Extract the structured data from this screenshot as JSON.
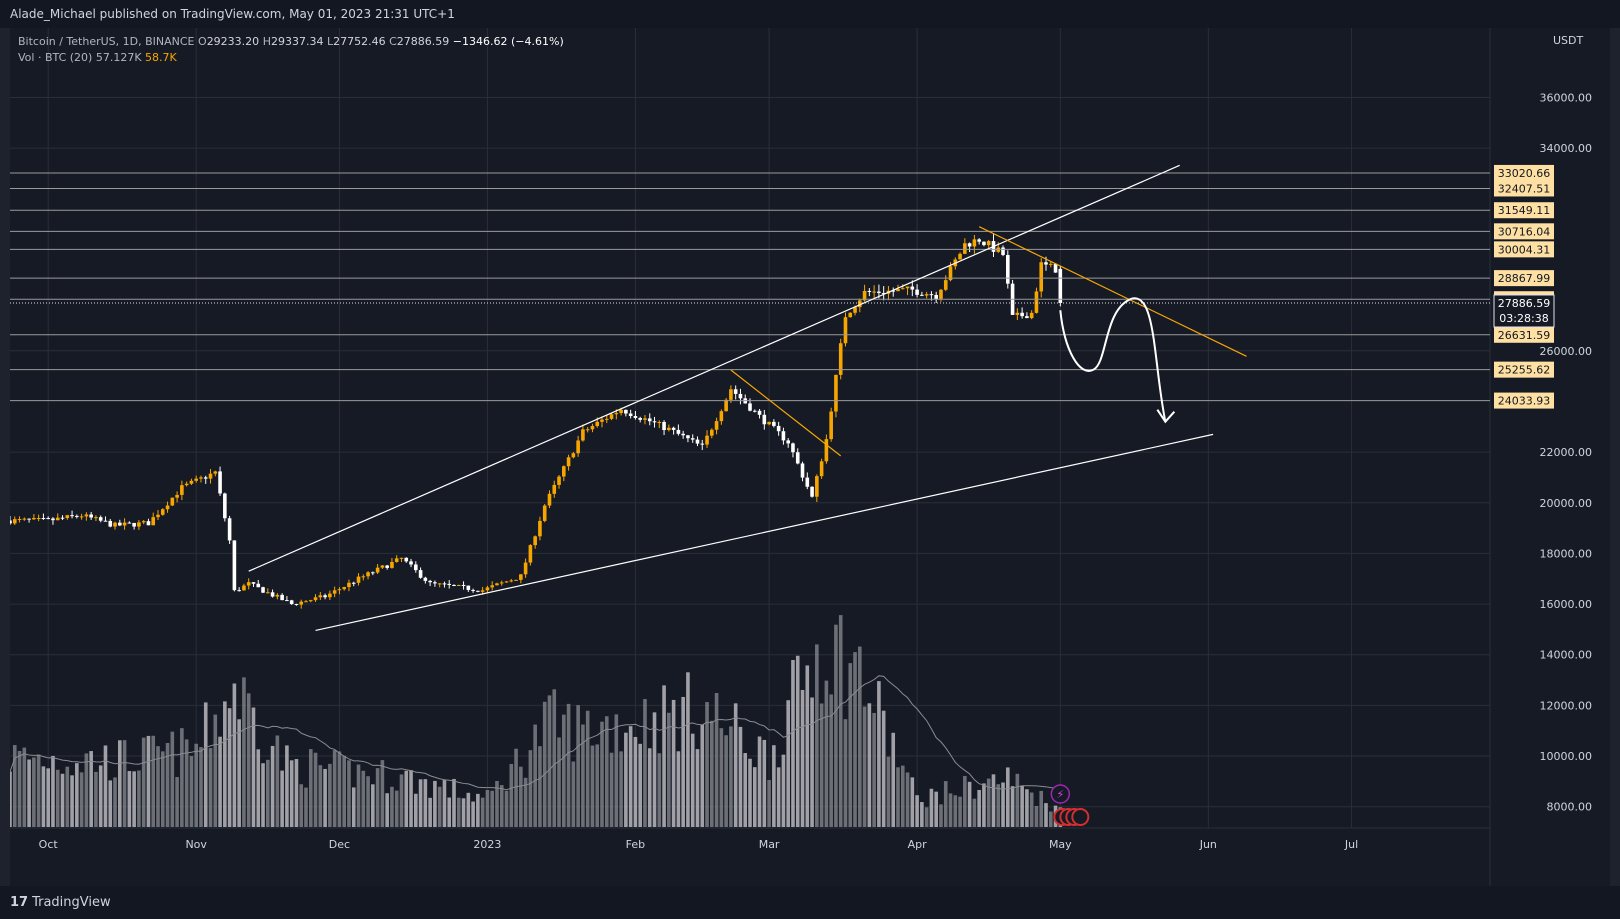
{
  "header": {
    "publisher_line": "Alade_Michael published on TradingView.com, May 01, 2023 21:31 UTC+1"
  },
  "legend": {
    "symbol": "Bitcoin / TetherUS, 1D, BINANCE",
    "o_label": "O",
    "o_value": "29233.20",
    "h_label": "H",
    "h_value": "29337.34",
    "l_label": "L",
    "l_value": "27752.46",
    "c_label": "C",
    "c_value": "27886.59",
    "change": "−1346.62 (−4.61%)",
    "vol_label": "Vol · BTC (20)",
    "vol_ma": "57.127K",
    "vol_value": "58.7K"
  },
  "y_axis_title": "USDT",
  "footer": {
    "brand": "TradingView",
    "brand_icon": "tradingview-logo-icon"
  },
  "colors": {
    "background": "#161a25",
    "up": "#f7a600",
    "down": "#ffffff",
    "grid": "#2a2e39",
    "level_line": "#9a9a9a",
    "trendline": "#ffffff",
    "downtrend": "#f7a600",
    "price_tag": "#ffe0a3"
  },
  "chart_data": {
    "type": "candlestick",
    "symbol": "BTCUSDT",
    "interval": "1D",
    "x": [
      "2022-09-23",
      "2022-10-01",
      "2022-11-01",
      "2022-12-01",
      "2023-01-01",
      "2023-02-01",
      "2023-03-01",
      "2023-04-01",
      "2023-05-01",
      "2023-06-01",
      "2023-07-01",
      "2023-07-30"
    ],
    "x_tick_labels": [
      "Oct",
      "Nov",
      "Dec",
      "2023",
      "Feb",
      "Mar",
      "Apr",
      "May",
      "Jun",
      "Jul"
    ],
    "y_tick_labels": [
      "36000.00",
      "34000.00",
      "26000.00",
      "22000.00",
      "20000.00",
      "18000.00",
      "16000.00",
      "14000.00",
      "12000.00",
      "10000.00",
      "8000.00"
    ],
    "ylim": [
      7160,
      38190
    ],
    "grid": true,
    "price_path": [
      [
        "2022-09-23",
        19300
      ],
      [
        "2022-10-01",
        19300
      ],
      [
        "2022-10-08",
        19500
      ],
      [
        "2022-10-15",
        19100
      ],
      [
        "2022-10-22",
        19200
      ],
      [
        "2022-10-29",
        20600
      ],
      [
        "2022-11-05",
        21200
      ],
      [
        "2022-11-08",
        18500
      ],
      [
        "2022-11-09",
        16500
      ],
      [
        "2022-11-12",
        16800
      ],
      [
        "2022-11-21",
        16000
      ],
      [
        "2022-11-28",
        16300
      ],
      [
        "2022-12-05",
        17000
      ],
      [
        "2022-12-14",
        17800
      ],
      [
        "2022-12-20",
        16800
      ],
      [
        "2022-12-31",
        16550
      ],
      [
        "2023-01-08",
        17100
      ],
      [
        "2023-01-13",
        19900
      ],
      [
        "2023-01-21",
        22800
      ],
      [
        "2023-01-29",
        23700
      ],
      [
        "2023-02-08",
        22900
      ],
      [
        "2023-02-15",
        22200
      ],
      [
        "2023-02-21",
        24500
      ],
      [
        "2023-02-27",
        23400
      ],
      [
        "2023-03-05",
        22400
      ],
      [
        "2023-03-10",
        20200
      ],
      [
        "2023-03-13",
        22500
      ],
      [
        "2023-03-17",
        27400
      ],
      [
        "2023-03-21",
        28300
      ],
      [
        "2023-03-31",
        28400
      ],
      [
        "2023-04-05",
        28200
      ],
      [
        "2023-04-11",
        30200
      ],
      [
        "2023-04-14",
        30400
      ],
      [
        "2023-04-19",
        29800
      ],
      [
        "2023-04-21",
        27300
      ],
      [
        "2023-04-25",
        27500
      ],
      [
        "2023-04-27",
        29400
      ],
      [
        "2023-04-30",
        29233.2
      ],
      [
        "2023-05-01",
        27886.59
      ]
    ],
    "last_candle": {
      "date": "2023-05-01",
      "open": 29233.2,
      "high": 29337.34,
      "low": 27752.46,
      "close": 27886.59
    },
    "horizontal_levels": [
      33020.66,
      32407.51,
      31549.11,
      30716.04,
      30004.31,
      28867.99,
      28035.8,
      26631.59,
      25255.62,
      24033.93
    ],
    "current_price": 27886.59,
    "countdown": "03:28:38",
    "trendlines": [
      {
        "name": "channel upper",
        "from": [
          "2022-11-12",
          17300
        ],
        "to": [
          "2023-05-26",
          33320
        ]
      },
      {
        "name": "channel lower",
        "from": [
          "2022-11-26",
          14960
        ],
        "to": [
          "2023-06-02",
          22700
        ]
      },
      {
        "name": "feb-mar descending",
        "from": [
          "2023-02-21",
          25240
        ],
        "to": [
          "2023-03-16",
          21850
        ]
      },
      {
        "name": "apr-may descending",
        "from": [
          "2023-04-14",
          30900
        ],
        "to": [
          "2023-06-09",
          25780
        ]
      }
    ],
    "projection_path": [
      [
        "2023-05-01",
        27600
      ],
      [
        "2023-05-08",
        25260
      ],
      [
        "2023-05-16",
        28060
      ],
      [
        "2023-05-23",
        23200
      ]
    ],
    "volume": {
      "label": "Vol · BTC (20)",
      "ma_period": 20,
      "ma_value": "57.127K",
      "last_value": "58.7K",
      "profile": [
        [
          "2022-09-23",
          100
        ],
        [
          "2022-10-15",
          95
        ],
        [
          "2022-11-01",
          110
        ],
        [
          "2022-11-09",
          200
        ],
        [
          "2022-11-20",
          90
        ],
        [
          "2022-12-15",
          70
        ],
        [
          "2023-01-01",
          40
        ],
        [
          "2023-01-14",
          150
        ],
        [
          "2023-01-20",
          140
        ],
        [
          "2023-02-01",
          150
        ],
        [
          "2023-02-15",
          170
        ],
        [
          "2023-03-01",
          100
        ],
        [
          "2023-03-12",
          270
        ],
        [
          "2023-03-20",
          220
        ],
        [
          "2023-04-01",
          40
        ],
        [
          "2023-04-20",
          70
        ],
        [
          "2023-05-01",
          25
        ]
      ]
    }
  }
}
